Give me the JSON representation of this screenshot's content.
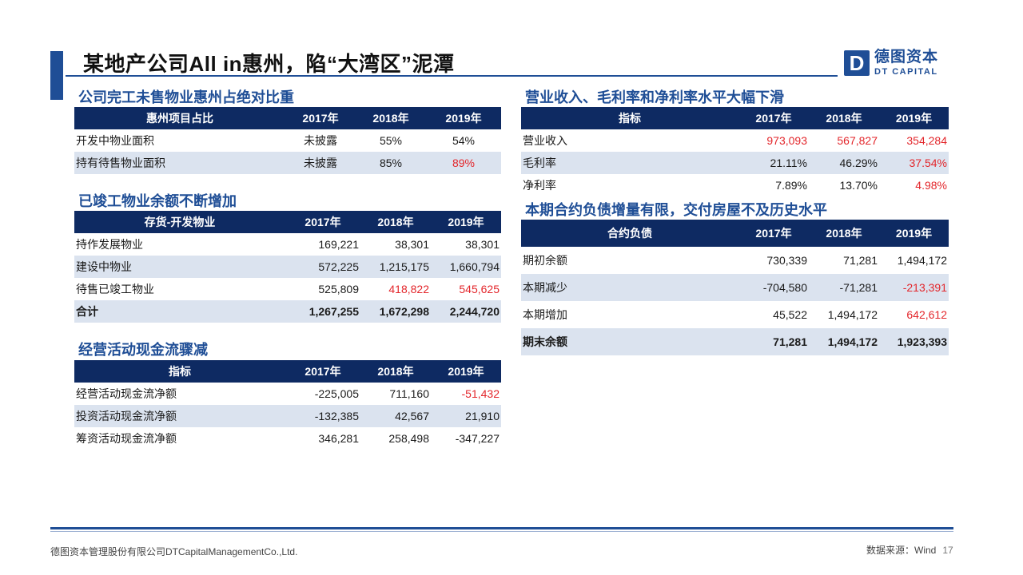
{
  "header": {
    "title": "某地产公司All in惠州，陷“大湾区”泥潭",
    "logo_mark": "D",
    "logo_cn": "德图资本",
    "logo_en": "DT CAPITAL"
  },
  "table1": {
    "title": "公司完工未售物业惠州占绝对比重",
    "headers": [
      "惠州项目占比",
      "2017年",
      "2018年",
      "2019年"
    ],
    "rows": [
      {
        "label": "开发中物业面积",
        "v": [
          "未披露",
          "55%",
          "54%"
        ]
      },
      {
        "label": "持有待售物业面积",
        "v": [
          "未披露",
          "85%",
          "89%"
        ]
      }
    ]
  },
  "table2": {
    "title": "已竣工物业余额不断增加",
    "headers": [
      "存货-开发物业",
      "2017年",
      "2018年",
      "2019年"
    ],
    "rows": [
      {
        "label": "持作发展物业",
        "v": [
          "169,221",
          "38,301",
          "38,301"
        ]
      },
      {
        "label": "建设中物业",
        "v": [
          "572,225",
          "1,215,175",
          "1,660,794"
        ]
      },
      {
        "label": "待售已竣工物业",
        "v": [
          "525,809",
          "418,822",
          "545,625"
        ]
      },
      {
        "label": "合计",
        "v": [
          "1,267,255",
          "1,672,298",
          "2,244,720"
        ]
      }
    ]
  },
  "table3": {
    "title": "经营活动现金流骤减",
    "headers": [
      "指标",
      "2017年",
      "2018年",
      "2019年"
    ],
    "rows": [
      {
        "label": "经营活动现金流净额",
        "v": [
          "-225,005",
          "711,160",
          "-51,432"
        ]
      },
      {
        "label": "投资活动现金流净额",
        "v": [
          "-132,385",
          "42,567",
          "21,910"
        ]
      },
      {
        "label": "筹资活动现金流净额",
        "v": [
          "346,281",
          "258,498",
          "-347,227"
        ]
      }
    ]
  },
  "table4": {
    "title": "营业收入、毛利率和净利率水平大幅下滑",
    "headers": [
      "指标",
      "2017年",
      "2018年",
      "2019年"
    ],
    "rows": [
      {
        "label": "营业收入",
        "v": [
          "973,093",
          "567,827",
          "354,284"
        ]
      },
      {
        "label": "毛利率",
        "v": [
          "21.11%",
          "46.29%",
          "37.54%"
        ]
      },
      {
        "label": "净利率",
        "v": [
          "7.89%",
          "13.70%",
          "4.98%"
        ]
      }
    ]
  },
  "table5": {
    "title": "本期合约负债增量有限，交付房屋不及历史水平",
    "headers": [
      "合约负债",
      "2017年",
      "2018年",
      "2019年"
    ],
    "rows": [
      {
        "label": "期初余额",
        "v": [
          "730,339",
          "71,281",
          "1,494,172"
        ]
      },
      {
        "label": "本期减少",
        "v": [
          "-704,580",
          "-71,281",
          "-213,391"
        ]
      },
      {
        "label": "本期增加",
        "v": [
          "45,522",
          "1,494,172",
          "642,612"
        ]
      },
      {
        "label": "期末余额",
        "v": [
          "71,281",
          "1,494,172",
          "1,923,393"
        ]
      }
    ]
  },
  "footer": {
    "company": "德图资本管理股份有限公司DTCapitalManagementCo.,Ltd.",
    "source": "数据来源：Wind",
    "page": "17"
  },
  "colors": {
    "accent": "#1f4e96",
    "header_bg": "#0e2a62",
    "highlight": "#e3262b",
    "stripe": "#dbe3ef"
  }
}
